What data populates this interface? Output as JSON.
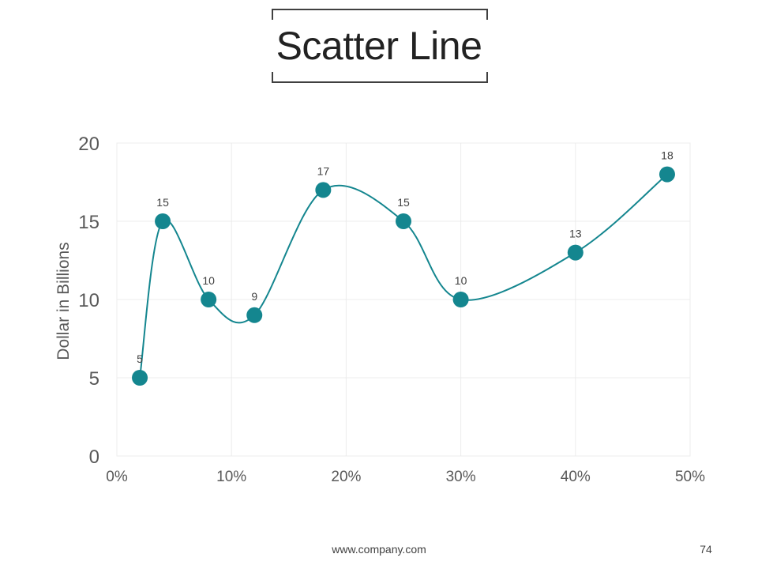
{
  "page": {
    "title": "Scatter Line",
    "footer_url": "www.company.com",
    "page_number": "74"
  },
  "colors": {
    "series": "#14868f",
    "grid": "#ececec",
    "axis_text": "#595959",
    "label_text": "#404040"
  },
  "chart_data": {
    "type": "scatter",
    "smooth": true,
    "title": "",
    "xlabel": "",
    "ylabel": "Dollar in Billions",
    "xlim": [
      0,
      50
    ],
    "ylim": [
      0,
      20
    ],
    "x_ticks": [
      0,
      10,
      20,
      30,
      40,
      50
    ],
    "x_tick_labels": [
      "0%",
      "10%",
      "20%",
      "30%",
      "40%",
      "50%"
    ],
    "y_ticks": [
      0,
      5,
      10,
      15,
      20
    ],
    "y_tick_labels": [
      "0",
      "5",
      "10",
      "15",
      "20"
    ],
    "grid": true,
    "legend": "none",
    "series": [
      {
        "x": [
          2,
          4,
          8,
          12,
          18,
          25,
          30,
          40,
          48
        ],
        "y": [
          5,
          15,
          10,
          9,
          17,
          15,
          10,
          13,
          18
        ],
        "data_labels": [
          "5",
          "15",
          "10",
          "9",
          "17",
          "15",
          "10",
          "13",
          "18"
        ]
      }
    ]
  }
}
